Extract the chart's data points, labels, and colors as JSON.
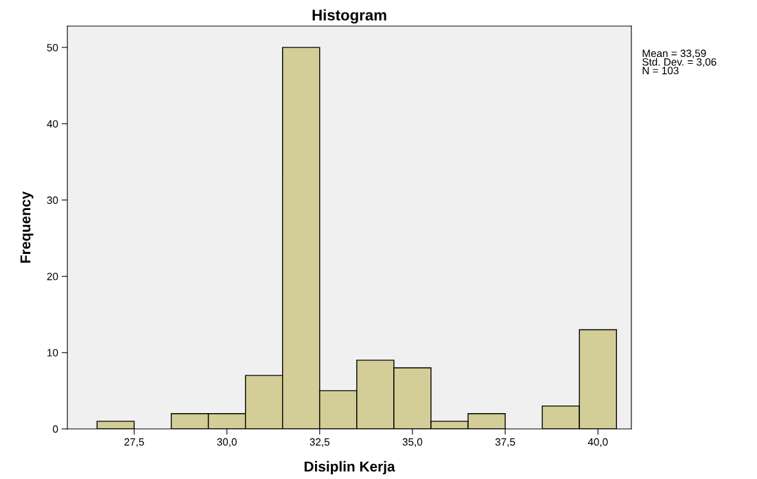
{
  "chart_data": {
    "type": "histogram",
    "title": "Histogram",
    "xlabel": "Disiplin Kerja",
    "ylabel": "Frequency",
    "bins": [
      26.5,
      27.5,
      28.5,
      29.5,
      30.5,
      31.5,
      32.5,
      33.5,
      34.5,
      35.5,
      36.5,
      37.5,
      38.5,
      39.5,
      40.5
    ],
    "values": [
      1,
      0,
      2,
      2,
      7,
      50,
      5,
      9,
      8,
      1,
      2,
      0,
      3,
      13
    ],
    "color": "#d3ce97",
    "xlim": [
      25.7,
      40.9
    ],
    "ylim": [
      0,
      52.8
    ],
    "xticks": [
      {
        "value": 27.5,
        "label": "27,5"
      },
      {
        "value": 30,
        "label": "30,0"
      },
      {
        "value": 32.5,
        "label": "32,5"
      },
      {
        "value": 35,
        "label": "35,0"
      },
      {
        "value": 37.5,
        "label": "37,5"
      },
      {
        "value": 40,
        "label": "40,0"
      }
    ],
    "yticks": [
      0,
      10,
      20,
      30,
      40,
      50
    ],
    "grid": false,
    "annotations": [
      "Mean = 33,59\nStd. Dev. = 3,06\nN = 103"
    ]
  }
}
